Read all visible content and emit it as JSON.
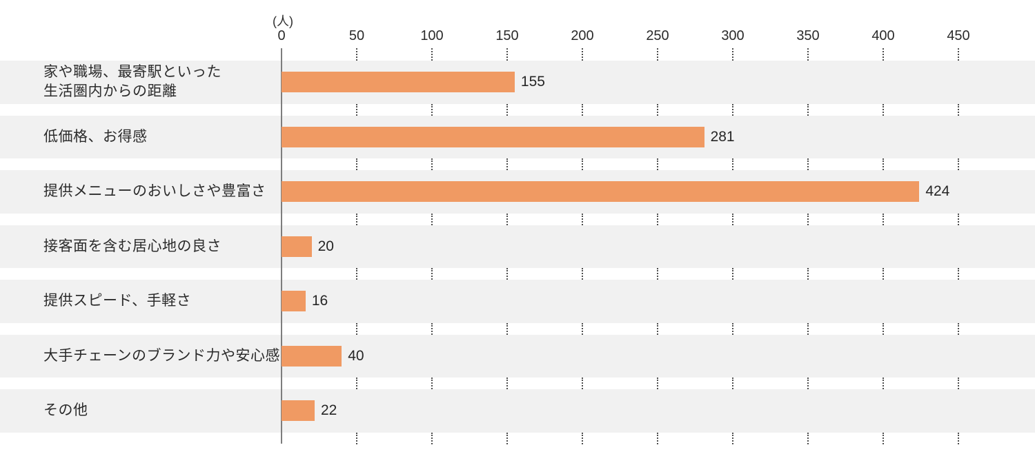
{
  "chart_data": {
    "type": "bar",
    "orientation": "horizontal",
    "title": "",
    "unit_label": "(人)",
    "xlabel": "(人)",
    "ylabel": "",
    "xlim": [
      0,
      450
    ],
    "x_ticks": [
      0,
      50,
      100,
      150,
      200,
      250,
      300,
      350,
      400,
      450
    ],
    "categories": [
      "家や職場、最寄駅といった\n生活圏内からの距離",
      "低価格、お得感",
      "提供メニューのおいしさや豊富さ",
      "接客面を含む居心地の良さ",
      "提供スピード、手軽さ",
      "大手チェーンのブランド力や安心感",
      "その他"
    ],
    "values": [
      155,
      281,
      424,
      20,
      16,
      40,
      22
    ],
    "value_labels": [
      "155",
      "281",
      "424",
      "20",
      "16",
      "40",
      "22"
    ],
    "legend": "none",
    "grid": "dotted-vertical-in-row-gaps",
    "colors": {
      "bar": "#F09A63",
      "row_band": "#F1F1F1",
      "axis_line": "#7D7D7D",
      "grid_dot": "#4D4D4D",
      "text": "#262626"
    }
  }
}
